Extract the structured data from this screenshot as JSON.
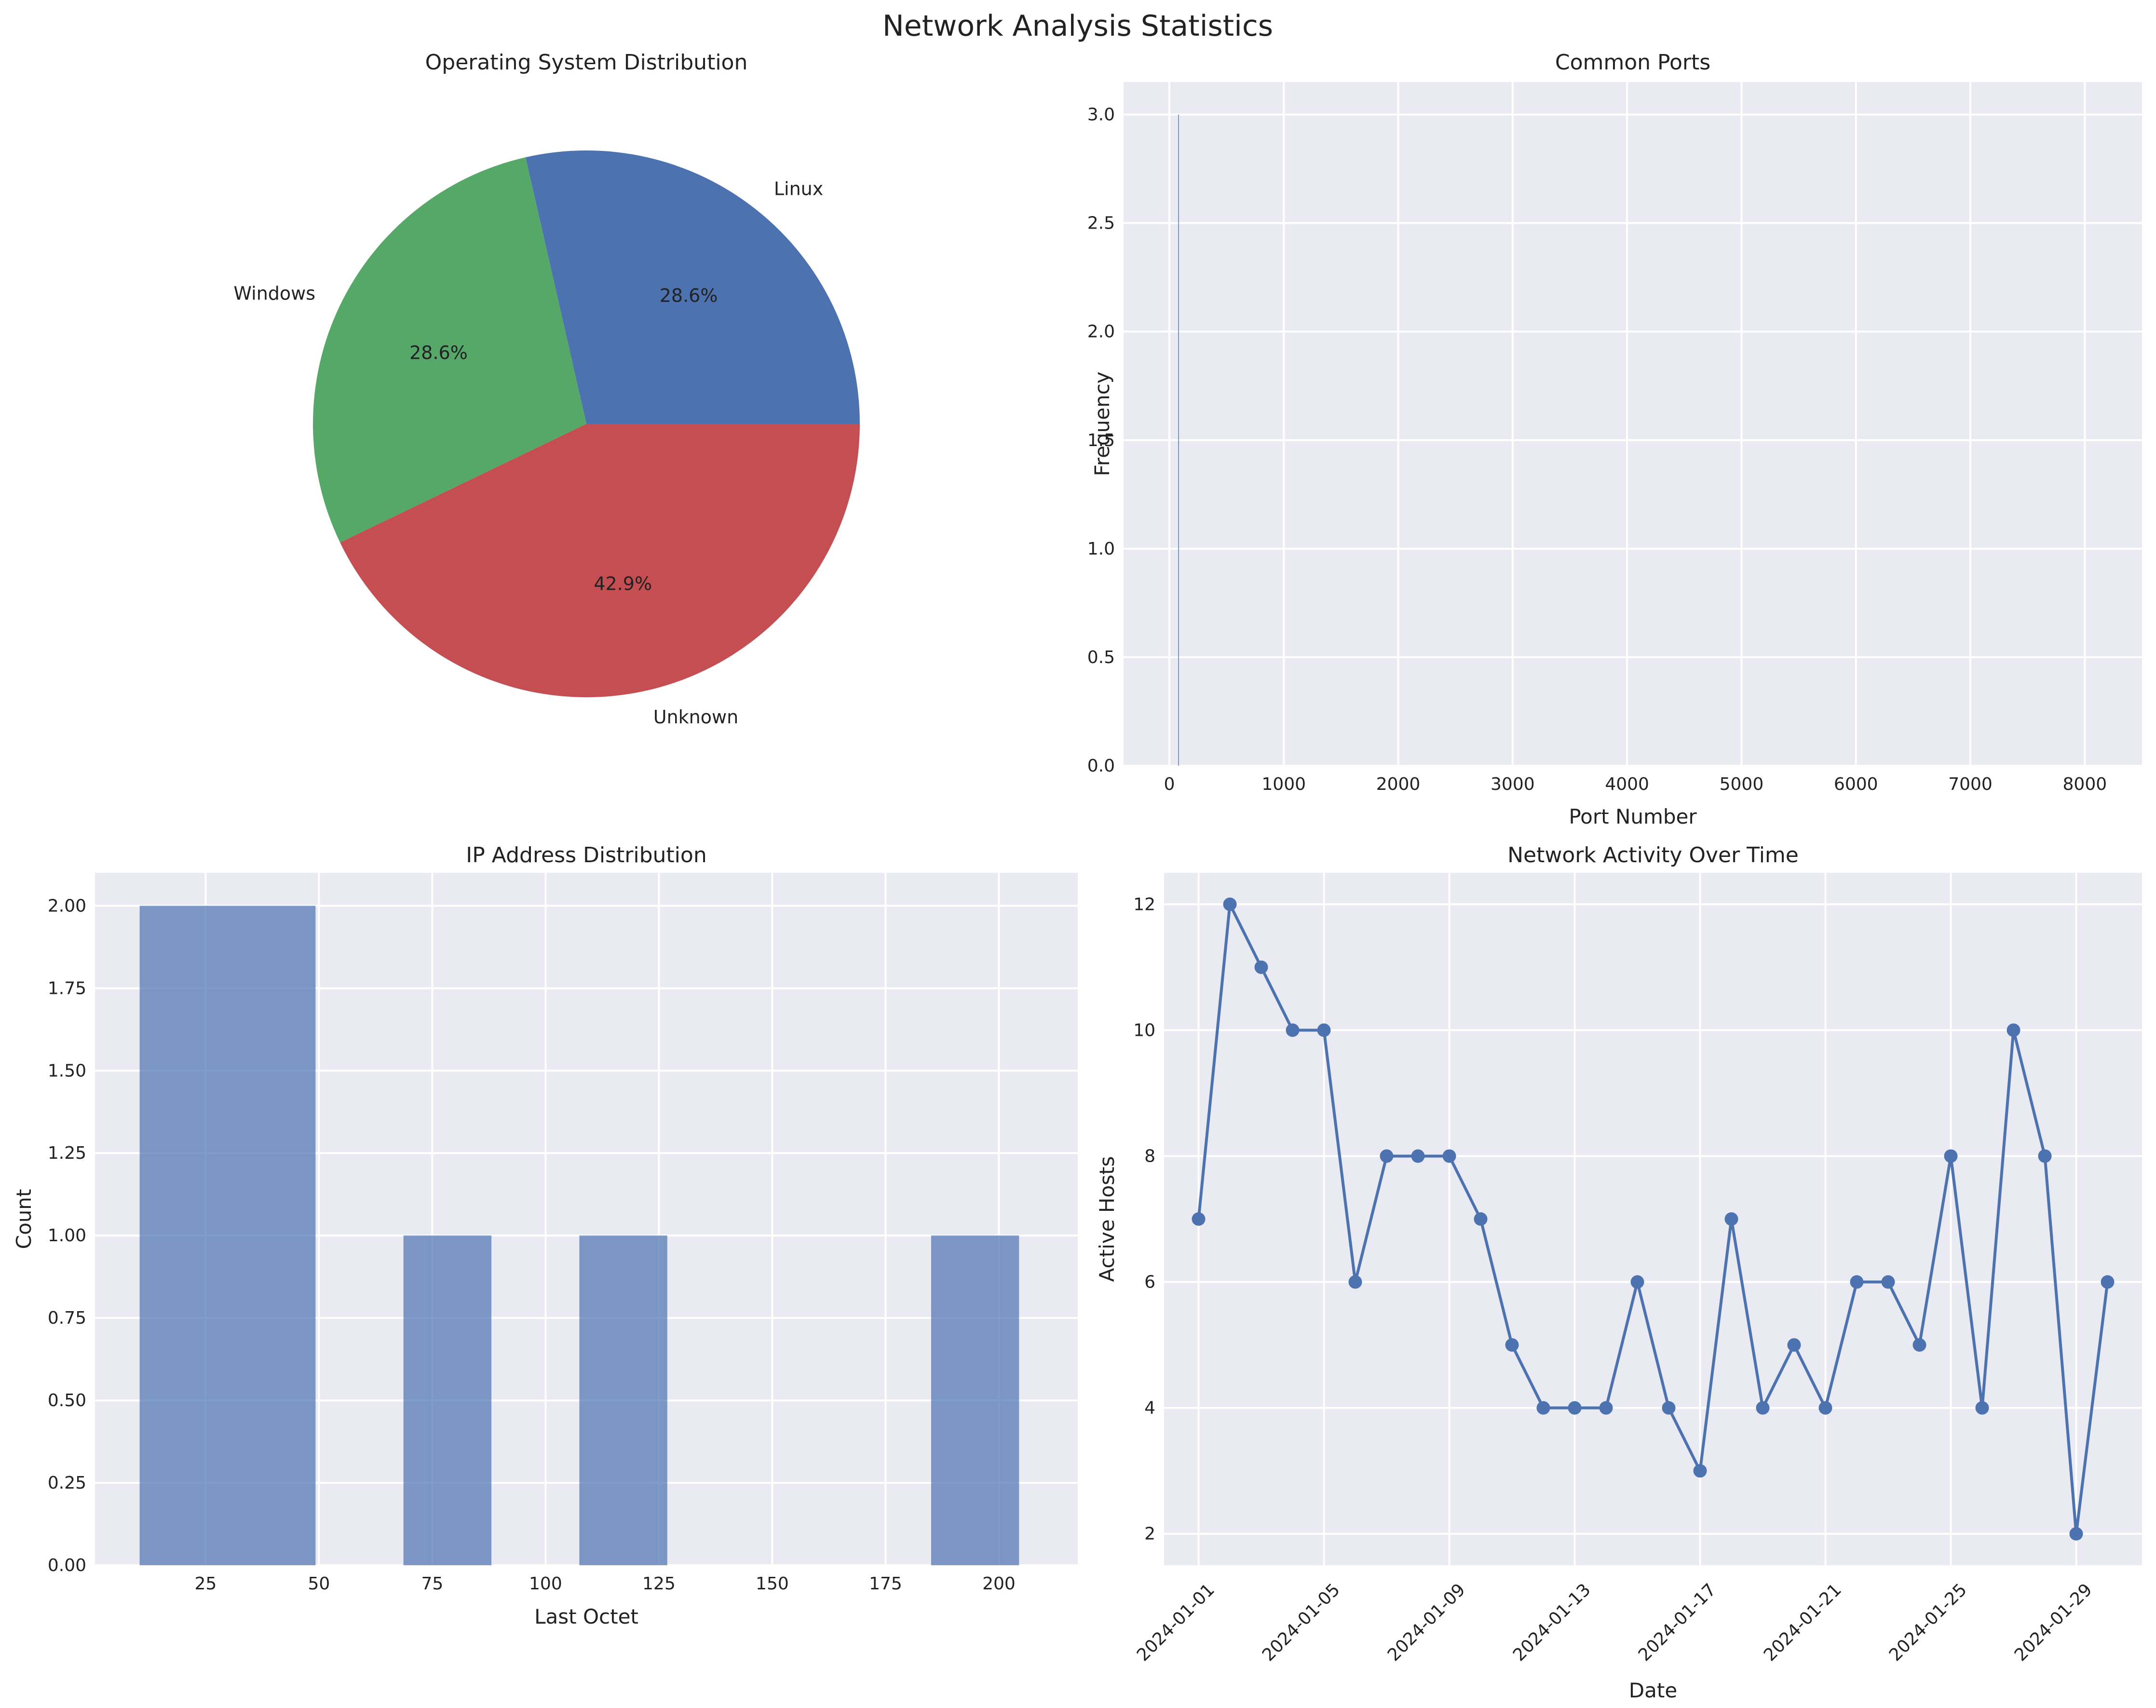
{
  "suptitle": "Network Analysis Statistics",
  "chart_data": [
    {
      "type": "pie",
      "title": "Operating System Distribution",
      "labels": [
        "Linux",
        "Windows",
        "Unknown"
      ],
      "values": [
        2,
        2,
        3
      ],
      "pct_labels": [
        "28.6%",
        "28.6%",
        "42.9%"
      ],
      "colors": [
        "#4c72b0",
        "#55a868",
        "#c44e52"
      ]
    },
    {
      "type": "bar",
      "title": "Common Ports",
      "xlabel": "Port Number",
      "ylabel": "Frequency",
      "xlim": [
        -400,
        8500
      ],
      "ylim": [
        0,
        3.15
      ],
      "xticks": [
        0,
        1000,
        2000,
        3000,
        4000,
        5000,
        6000,
        7000,
        8000
      ],
      "xtick_labels": [
        "0",
        "1000",
        "2000",
        "3000",
        "4000",
        "5000",
        "6000",
        "7000",
        "8000"
      ],
      "yticks": [
        0,
        0.5,
        1,
        1.5,
        2,
        2.5,
        3
      ],
      "ytick_labels": [
        "0.0",
        "0.5",
        "1.0",
        "1.5",
        "2.0",
        "2.5",
        "3.0"
      ],
      "bars": [
        {
          "x": 80,
          "width": 8,
          "value": 3
        }
      ],
      "color": "#4c72b0"
    },
    {
      "type": "bar",
      "title": "IP Address Distribution",
      "xlabel": "Last Octet",
      "ylabel": "Count",
      "xlim": [
        0.6,
        217.4
      ],
      "ylim": [
        0,
        2.1
      ],
      "xticks": [
        25,
        50,
        75,
        100,
        125,
        150,
        175,
        200
      ],
      "xtick_labels": [
        "25",
        "50",
        "75",
        "100",
        "125",
        "150",
        "175",
        "200"
      ],
      "yticks": [
        0,
        0.25,
        0.5,
        0.75,
        1,
        1.25,
        1.5,
        1.75,
        2
      ],
      "ytick_labels": [
        "0.00",
        "0.25",
        "0.50",
        "0.75",
        "1.00",
        "1.25",
        "1.50",
        "1.75",
        "2.00"
      ],
      "bars": [
        {
          "x0": 10.45,
          "x1": 29.85,
          "value": 2
        },
        {
          "x0": 29.85,
          "x1": 49.25,
          "value": 2
        },
        {
          "x0": 68.65,
          "x1": 88.05,
          "value": 1
        },
        {
          "x0": 107.45,
          "x1": 126.85,
          "value": 1
        },
        {
          "x0": 185.05,
          "x1": 204.45,
          "value": 1
        }
      ],
      "color": "#4c72b0"
    },
    {
      "type": "line",
      "title": "Network Activity Over Time",
      "xlabel": "Date",
      "ylabel": "Active Hosts",
      "xlim": [
        -1.1,
        30.1
      ],
      "ylim": [
        1.5,
        12.5
      ],
      "xticks": [
        0,
        4,
        8,
        12,
        16,
        20,
        24,
        28
      ],
      "xtick_labels": [
        "2024-01-01",
        "2024-01-05",
        "2024-01-09",
        "2024-01-13",
        "2024-01-17",
        "2024-01-21",
        "2024-01-25",
        "2024-01-29"
      ],
      "yticks": [
        2,
        4,
        6,
        8,
        10,
        12
      ],
      "ytick_labels": [
        "2",
        "4",
        "6",
        "8",
        "10",
        "12"
      ],
      "x": [
        0,
        1,
        2,
        3,
        4,
        5,
        6,
        7,
        8,
        9,
        10,
        11,
        12,
        13,
        14,
        15,
        16,
        17,
        18,
        19,
        20,
        21,
        22,
        23,
        24,
        25,
        26,
        27,
        28,
        29
      ],
      "values": [
        7,
        12,
        11,
        10,
        10,
        6,
        8,
        8,
        8,
        7,
        5,
        4,
        4,
        4,
        6,
        4,
        3,
        7,
        4,
        5,
        4,
        6,
        6,
        5,
        8,
        4,
        10,
        8,
        2,
        6
      ],
      "color": "#4c72b0"
    }
  ]
}
